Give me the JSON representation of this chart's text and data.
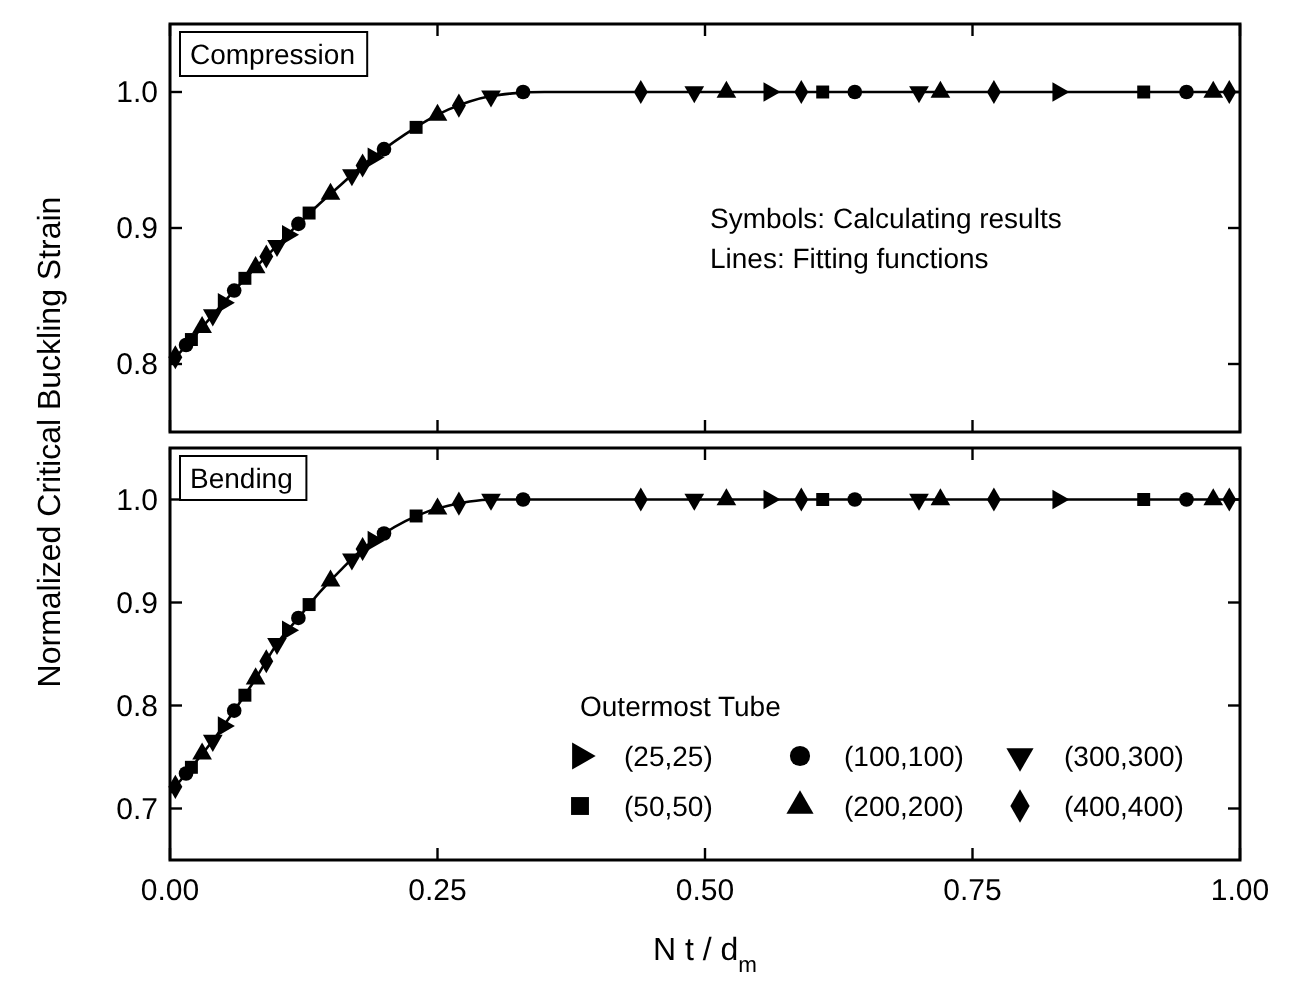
{
  "chart_data": [
    {
      "type": "scatter",
      "ylabel": "Normalized Critical Buckling Strain",
      "xlim": [
        0,
        1
      ],
      "xticks": [
        0,
        0.25,
        0.5,
        0.75,
        1
      ],
      "ylim": [
        0.75,
        1.05
      ],
      "yticks": [
        {
          "value": 0.8,
          "label": "0.8"
        },
        {
          "value": 0.9,
          "label": "0.9"
        },
        {
          "value": 1,
          "label": "1.0"
        }
      ],
      "tick_labels": "y",
      "legend": false,
      "annotations": [
        "Compression",
        "Symbols: Calculating results",
        "Lines: Fitting functions"
      ],
      "series": [
        {
          "color": "#000000",
          "marker": "triangle-right",
          "x": [
            0.05,
            0.11,
            0.19,
            0.56,
            0.83
          ],
          "values": [
            0.845,
            0.895,
            0.952,
            1,
            1
          ]
        },
        {
          "color": "#000000",
          "marker": "square",
          "x": [
            0.02,
            0.07,
            0.13,
            0.23,
            0.61,
            0.91
          ],
          "values": [
            0.818,
            0.863,
            0.911,
            0.974,
            1,
            1
          ]
        },
        {
          "color": "#000000",
          "marker": "circle",
          "x": [
            0.015,
            0.06,
            0.12,
            0.2,
            0.33,
            0.64,
            0.95
          ],
          "values": [
            0.814,
            0.854,
            0.903,
            0.958,
            1,
            1,
            1
          ]
        },
        {
          "color": "#000000",
          "marker": "triangle",
          "x": [
            0.03,
            0.08,
            0.15,
            0.25,
            0.52,
            0.72,
            0.975
          ],
          "values": [
            0.827,
            0.871,
            0.925,
            0.983,
            1,
            1,
            1
          ]
        },
        {
          "color": "#000000",
          "marker": "triangle-down",
          "x": [
            0.04,
            0.1,
            0.17,
            0.3,
            0.49,
            0.7
          ],
          "values": [
            0.836,
            0.887,
            0.939,
            0.997,
            1,
            1
          ]
        },
        {
          "color": "#000000",
          "marker": "diamond",
          "x": [
            0.005,
            0.09,
            0.18,
            0.27,
            0.44,
            0.59,
            0.77,
            0.99
          ],
          "values": [
            0.805,
            0.879,
            0.946,
            0.99,
            1,
            1,
            1,
            1
          ]
        },
        {
          "type": "line",
          "color": "#000000",
          "marker": "none",
          "line_style": "solid",
          "x": [
            0,
            0.02,
            0.04,
            0.06,
            0.08,
            0.1,
            0.12,
            0.14,
            0.16,
            0.18,
            0.2,
            0.22,
            0.24,
            0.26,
            0.28,
            0.3,
            0.32,
            0.35,
            1
          ],
          "values": [
            0.8,
            0.818,
            0.836,
            0.854,
            0.871,
            0.887,
            0.903,
            0.918,
            0.932,
            0.946,
            0.958,
            0.969,
            0.979,
            0.987,
            0.993,
            0.997,
            0.999,
            1,
            1
          ]
        }
      ]
    },
    {
      "type": "scatter",
      "xlabel": "N t / d$_{m}$",
      "xlim": [
        0,
        1
      ],
      "xticks": [
        {
          "value": 0,
          "label": "0.00"
        },
        0.25,
        {
          "value": 0.5,
          "label": "0.50"
        },
        0.75,
        {
          "value": 1,
          "label": "1.00"
        }
      ],
      "ylim": [
        0.65,
        1.05
      ],
      "yticks": [
        {
          "value": 0.7,
          "label": "0.7"
        },
        {
          "value": 0.8,
          "label": "0.8"
        },
        {
          "value": 0.9,
          "label": "0.9"
        },
        {
          "value": 1,
          "label": "1.0"
        }
      ],
      "legend": "bottom right",
      "legend_title": "Outermost Tube",
      "annotations": [
        "Bending"
      ],
      "series": [
        {
          "name": "(25,25)",
          "color": "#000000",
          "marker": "triangle-right",
          "x": [
            0.05,
            0.11,
            0.19,
            0.56,
            0.83
          ],
          "values": [
            0.78,
            0.873,
            0.96,
            1,
            1
          ]
        },
        {
          "name": "(50,50)",
          "color": "#000000",
          "marker": "square",
          "x": [
            0.02,
            0.07,
            0.13,
            0.23,
            0.61,
            0.91
          ],
          "values": [
            0.74,
            0.81,
            0.898,
            0.984,
            1,
            1
          ]
        },
        {
          "name": "(100,100)",
          "color": "#000000",
          "marker": "circle",
          "x": [
            0.015,
            0.06,
            0.12,
            0.2,
            0.33,
            0.64,
            0.95
          ],
          "values": [
            0.734,
            0.795,
            0.885,
            0.967,
            1,
            1,
            1
          ]
        },
        {
          "name": "(200,200)",
          "color": "#000000",
          "marker": "triangle",
          "x": [
            0.03,
            0.08,
            0.15,
            0.25,
            0.52,
            0.72,
            0.975
          ],
          "values": [
            0.753,
            0.826,
            0.921,
            0.991,
            1,
            1,
            1
          ]
        },
        {
          "name": "(300,300)",
          "color": "#000000",
          "marker": "triangle-down",
          "x": [
            0.04,
            0.1,
            0.17,
            0.3,
            0.49,
            0.7
          ],
          "values": [
            0.766,
            0.86,
            0.942,
            1,
            1,
            1
          ]
        },
        {
          "name": "(400,400)",
          "color": "#000000",
          "marker": "diamond",
          "x": [
            0.005,
            0.09,
            0.18,
            0.27,
            0.44,
            0.59,
            0.77,
            0.99
          ],
          "values": [
            0.721,
            0.843,
            0.952,
            0.996,
            1,
            1,
            1,
            1
          ]
        },
        {
          "type": "line",
          "color": "#000000",
          "marker": "none",
          "line_style": "solid",
          "x": [
            0,
            0.02,
            0.04,
            0.06,
            0.08,
            0.1,
            0.12,
            0.14,
            0.16,
            0.18,
            0.2,
            0.22,
            0.24,
            0.26,
            0.28,
            0.3,
            1
          ],
          "values": [
            0.715,
            0.74,
            0.766,
            0.795,
            0.826,
            0.86,
            0.885,
            0.91,
            0.932,
            0.952,
            0.967,
            0.979,
            0.988,
            0.994,
            0.998,
            1,
            1
          ]
        }
      ]
    }
  ]
}
